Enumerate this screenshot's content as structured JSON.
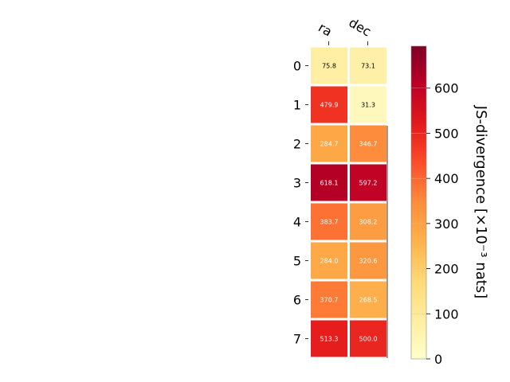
{
  "chart_data": {
    "type": "heatmap",
    "columns": [
      "ra",
      "dec"
    ],
    "rows": [
      "0",
      "1",
      "2",
      "3",
      "4",
      "5",
      "6",
      "7"
    ],
    "values": [
      [
        75.8,
        73.1
      ],
      [
        479.9,
        31.3
      ],
      [
        284.7,
        346.7
      ],
      [
        618.1,
        597.2
      ],
      [
        383.7,
        308.2
      ],
      [
        284.0,
        320.6
      ],
      [
        370.7,
        268.5
      ],
      [
        513.3,
        500.0
      ]
    ],
    "colorbar": {
      "label": "JS-divergence [×10⁻³ nats]",
      "range": [
        0,
        693
      ],
      "ticks": [
        0,
        100,
        200,
        300,
        400,
        500,
        600
      ],
      "colormap": "YlOrRd"
    }
  }
}
